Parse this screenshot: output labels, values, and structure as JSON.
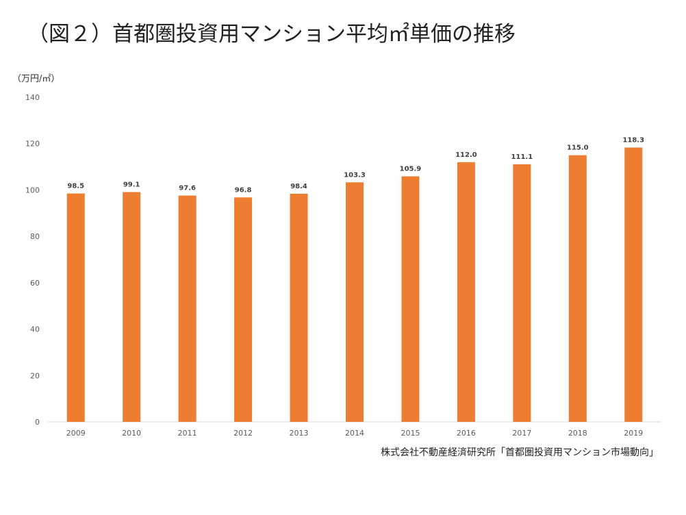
{
  "title": "（図２）首都圏投資用マンション平均㎡単価の推移",
  "unit_label": "（万円/㎡）",
  "source": "株式会社不動産経済研究所「首都圏投資用マンション市場動向」",
  "colors": {
    "bar": "#ED7D31",
    "axis": "#D9D9D9",
    "tick_text": "#595959",
    "data_label": "#404040"
  },
  "chart_data": {
    "type": "bar",
    "categories": [
      "2009",
      "2010",
      "2011",
      "2012",
      "2013",
      "2014",
      "2015",
      "2016",
      "2017",
      "2018",
      "2019"
    ],
    "values": [
      98.5,
      99.1,
      97.6,
      96.8,
      98.4,
      103.3,
      105.9,
      112.0,
      111.1,
      115.0,
      118.3
    ],
    "data_labels": [
      "98.5",
      "99.1",
      "97.6",
      "96.8",
      "98.4",
      "103.3",
      "105.9",
      "112.0",
      "111.1",
      "115.0",
      "118.3"
    ],
    "yticks": [
      "0",
      "20",
      "40",
      "60",
      "80",
      "100",
      "120",
      "140"
    ],
    "ylim": [
      0,
      140
    ],
    "grid": false,
    "legend": "none"
  }
}
